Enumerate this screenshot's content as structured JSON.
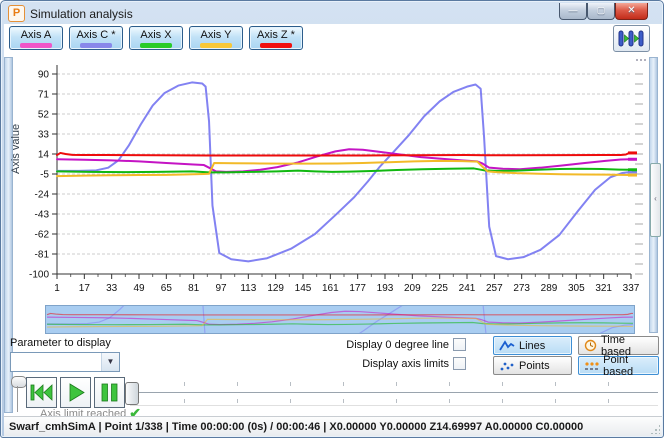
{
  "window": {
    "title": "Simulation analysis",
    "icon_letter": "P",
    "controls": {
      "minimize": "—",
      "maximize": "▢",
      "close": "✕"
    }
  },
  "toolbar": {
    "axis_buttons": [
      {
        "label": "Axis A",
        "color": "#f055c8"
      },
      {
        "label": "Axis C *",
        "color": "#8888ea"
      },
      {
        "label": "Axis X",
        "color": "#28cc28"
      },
      {
        "label": "Axis Y",
        "color": "#f8c838"
      },
      {
        "label": "Axis Z *",
        "color": "#f01010"
      }
    ]
  },
  "chart_data": {
    "type": "line",
    "title": "",
    "xlabel": "",
    "ylabel": "Axis value",
    "xlim": [
      1,
      337
    ],
    "ylim": [
      -100,
      90
    ],
    "yticks": [
      90,
      71,
      52,
      33,
      14,
      -5,
      -24,
      -43,
      -62,
      -81,
      -100
    ],
    "xticks": [
      1,
      17,
      33,
      49,
      65,
      81,
      97,
      113,
      129,
      145,
      161,
      177,
      193,
      209,
      225,
      241,
      257,
      273,
      289,
      305,
      321,
      337
    ],
    "grid": "horizontal-dashed",
    "legend_position": "none",
    "series": [
      {
        "name": "Axis C",
        "color": "#8282f2",
        "x": [
          1,
          14,
          24,
          31,
          37,
          43,
          50,
          57,
          64,
          72,
          80,
          86,
          88,
          90,
          92,
          96,
          103,
          113,
          124,
          138,
          152,
          164,
          175,
          183,
          190,
          198,
          207,
          216,
          225,
          233,
          241,
          246,
          249,
          251,
          254,
          258,
          265,
          274,
          284,
          295,
          306,
          316,
          325,
          332,
          337
        ],
        "y": [
          -2,
          -2,
          -1.5,
          1,
          8,
          22,
          42,
          60,
          72,
          79,
          82,
          81,
          78,
          45,
          -35,
          -80,
          -86,
          -88,
          -85,
          -76,
          -62,
          -44,
          -27,
          -12,
          2,
          16,
          32,
          50,
          64,
          73,
          78,
          80,
          76,
          30,
          -55,
          -83,
          -86,
          -84,
          -77,
          -63,
          -40,
          -20,
          -8,
          -4,
          -3
        ]
      },
      {
        "name": "Axis A",
        "color": "#c414c4",
        "x": [
          1,
          17,
          33,
          49,
          65,
          81,
          87,
          90,
          94,
          100,
          110,
          120,
          130,
          142,
          154,
          164,
          172,
          180,
          190,
          202,
          214,
          226,
          238,
          247,
          250,
          254,
          262,
          272,
          284,
          296,
          310,
          322,
          331,
          337
        ],
        "y": [
          9,
          8.5,
          8,
          7,
          5.5,
          4,
          3.5,
          1,
          -2.5,
          -3,
          -2.5,
          -1,
          1.5,
          6,
          12,
          16.5,
          18.5,
          18,
          16,
          13.5,
          11,
          9.5,
          8,
          7,
          5,
          1,
          0,
          -0.5,
          1,
          3,
          5.5,
          7.5,
          8.8,
          9
        ]
      },
      {
        "name": "Axis X",
        "color": "#10b810",
        "x": [
          1,
          20,
          40,
          60,
          80,
          90,
          100,
          115,
          130,
          142,
          152,
          162,
          172,
          185,
          200,
          215,
          230,
          245,
          251,
          258,
          270,
          282,
          295,
          308,
          320,
          330,
          337
        ],
        "y": [
          -2.5,
          -3,
          -3.2,
          -3,
          -2.5,
          -3.5,
          -3.5,
          -3,
          -2.5,
          -1.8,
          -2.5,
          -3,
          -2.8,
          -2.2,
          -1.2,
          -0.5,
          0,
          0.3,
          -1.5,
          -2,
          -1.8,
          -1,
          -0.3,
          0,
          -0.2,
          -0.8,
          -1
        ]
      },
      {
        "name": "Axis Y",
        "color": "#f2ba28",
        "x": [
          1,
          17,
          33,
          49,
          65,
          81,
          87,
          90,
          93,
          105,
          120,
          135,
          150,
          165,
          180,
          195,
          210,
          225,
          238,
          247,
          250,
          253,
          258,
          270,
          283,
          296,
          310,
          322,
          331,
          337
        ],
        "y": [
          -7,
          -6.5,
          -6.2,
          -6,
          -5.8,
          -5.2,
          -5,
          -4.8,
          5.5,
          5.2,
          5,
          4.8,
          4.8,
          5,
          5.5,
          6.2,
          7,
          7.5,
          7.2,
          6.8,
          2,
          -2.5,
          -3.2,
          -4.2,
          -4.8,
          -5.2,
          -5.5,
          -5.6,
          -5.8,
          -6
        ]
      },
      {
        "name": "Axis Z",
        "color": "#ee0c0c",
        "x": [
          1,
          3,
          6,
          10,
          16,
          30,
          60,
          90,
          120,
          150,
          180,
          210,
          240,
          252,
          270,
          300,
          320,
          331,
          334,
          336,
          337
        ],
        "y": [
          13,
          15,
          14,
          13.2,
          13,
          13,
          12.8,
          12.6,
          12.6,
          12.6,
          12.6,
          12.8,
          13,
          12.8,
          12.8,
          12.9,
          13,
          13,
          13.5,
          15,
          15
        ]
      }
    ],
    "overview_strip": {
      "background": "#a9cdf1",
      "y_domain": [
        -15,
        27
      ]
    }
  },
  "controls": {
    "parameter_label": "Parameter to display",
    "parameter_value": "",
    "checkbox_zero_line": {
      "label": "Display 0 degree line",
      "checked": false
    },
    "checkbox_axis_limits": {
      "label": "Display axis limits",
      "checked": false
    },
    "lines_button": "Lines",
    "points_button": "Points",
    "time_based_button": "Time based",
    "point_based_button": "Point based",
    "selected_buttons": [
      "Lines",
      "Point based"
    ]
  },
  "playback": {
    "axis_limit_label": "Axis limit reached",
    "check_glyph": "✔"
  },
  "status_bar": {
    "text": "Swarf_cmhSimA | Point 1/338 | Time 00:00:00 (0s) / 00:00:46 | X0.00000 Y0.00000 Z14.69997 A0.00000 C0.00000"
  }
}
